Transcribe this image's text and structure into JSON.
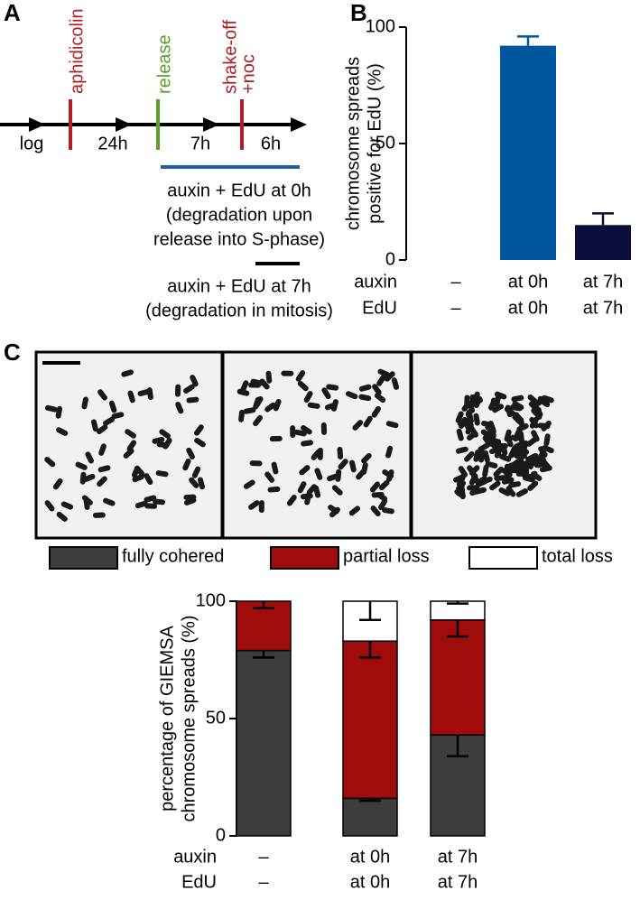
{
  "panel_labels": [
    "A",
    "B",
    "C"
  ],
  "timeline": {
    "steps": [
      "log",
      "24h",
      "7h",
      "6h"
    ],
    "events": [
      {
        "lines": [
          "aphidicolin"
        ],
        "color": "#b01f28"
      },
      {
        "lines": [
          "release"
        ],
        "color": "#5b9f2b"
      },
      {
        "lines": [
          "shake-off",
          "+noc"
        ],
        "color": "#b01f28"
      }
    ],
    "conditions": [
      {
        "color": "#1f5fa6",
        "lines": [
          "auxin + EdU at 0h",
          "(degradation upon",
          "release into S-phase)"
        ]
      },
      {
        "color": "#000000",
        "lines": [
          "auxin + EdU at 7h",
          "(degradation in mitosis)"
        ]
      }
    ]
  },
  "chart_data": [
    {
      "type": "bar",
      "ylabel": [
        "chromosome spreads",
        "positive for EdU (%)"
      ],
      "category_rows": [
        {
          "name": "auxin",
          "labels": [
            "–",
            "at 0h",
            "at 7h"
          ]
        },
        {
          "name": "EdU",
          "labels": [
            "–",
            "at 0h",
            "at 7h"
          ]
        }
      ],
      "values": [
        0,
        92,
        15
      ],
      "errors": [
        null,
        4,
        5
      ],
      "error_bars": "up",
      "colors": [
        "#0057a0",
        "#0057a0",
        "#0b0d3a"
      ],
      "ylim": [
        0,
        100
      ],
      "yticks": [
        0,
        50,
        100
      ]
    },
    {
      "type": "stacked_bar",
      "ylabel": [
        "percentage of GIEMSA",
        "chromosome spreads (%)"
      ],
      "category_rows": [
        {
          "name": "auxin",
          "labels": [
            "–",
            "at 0h",
            "at 7h"
          ]
        },
        {
          "name": "EdU",
          "labels": [
            "–",
            "at 0h",
            "at 7h"
          ]
        }
      ],
      "series": [
        {
          "name": "fully cohered",
          "color": "#3d3d3d",
          "values": [
            79,
            16,
            43
          ],
          "errors": [
            3,
            1,
            9
          ]
        },
        {
          "name": "partial loss",
          "color": "#a00c0c",
          "values": [
            21,
            67,
            49
          ],
          "errors": [
            3,
            7,
            7
          ]
        },
        {
          "name": "total loss",
          "color": "#ffffff",
          "values": [
            0,
            17,
            8
          ],
          "errors": [
            null,
            8,
            1
          ]
        }
      ],
      "error_bars": "down",
      "ylim": [
        0,
        100
      ],
      "yticks": [
        0,
        50,
        100
      ]
    }
  ]
}
